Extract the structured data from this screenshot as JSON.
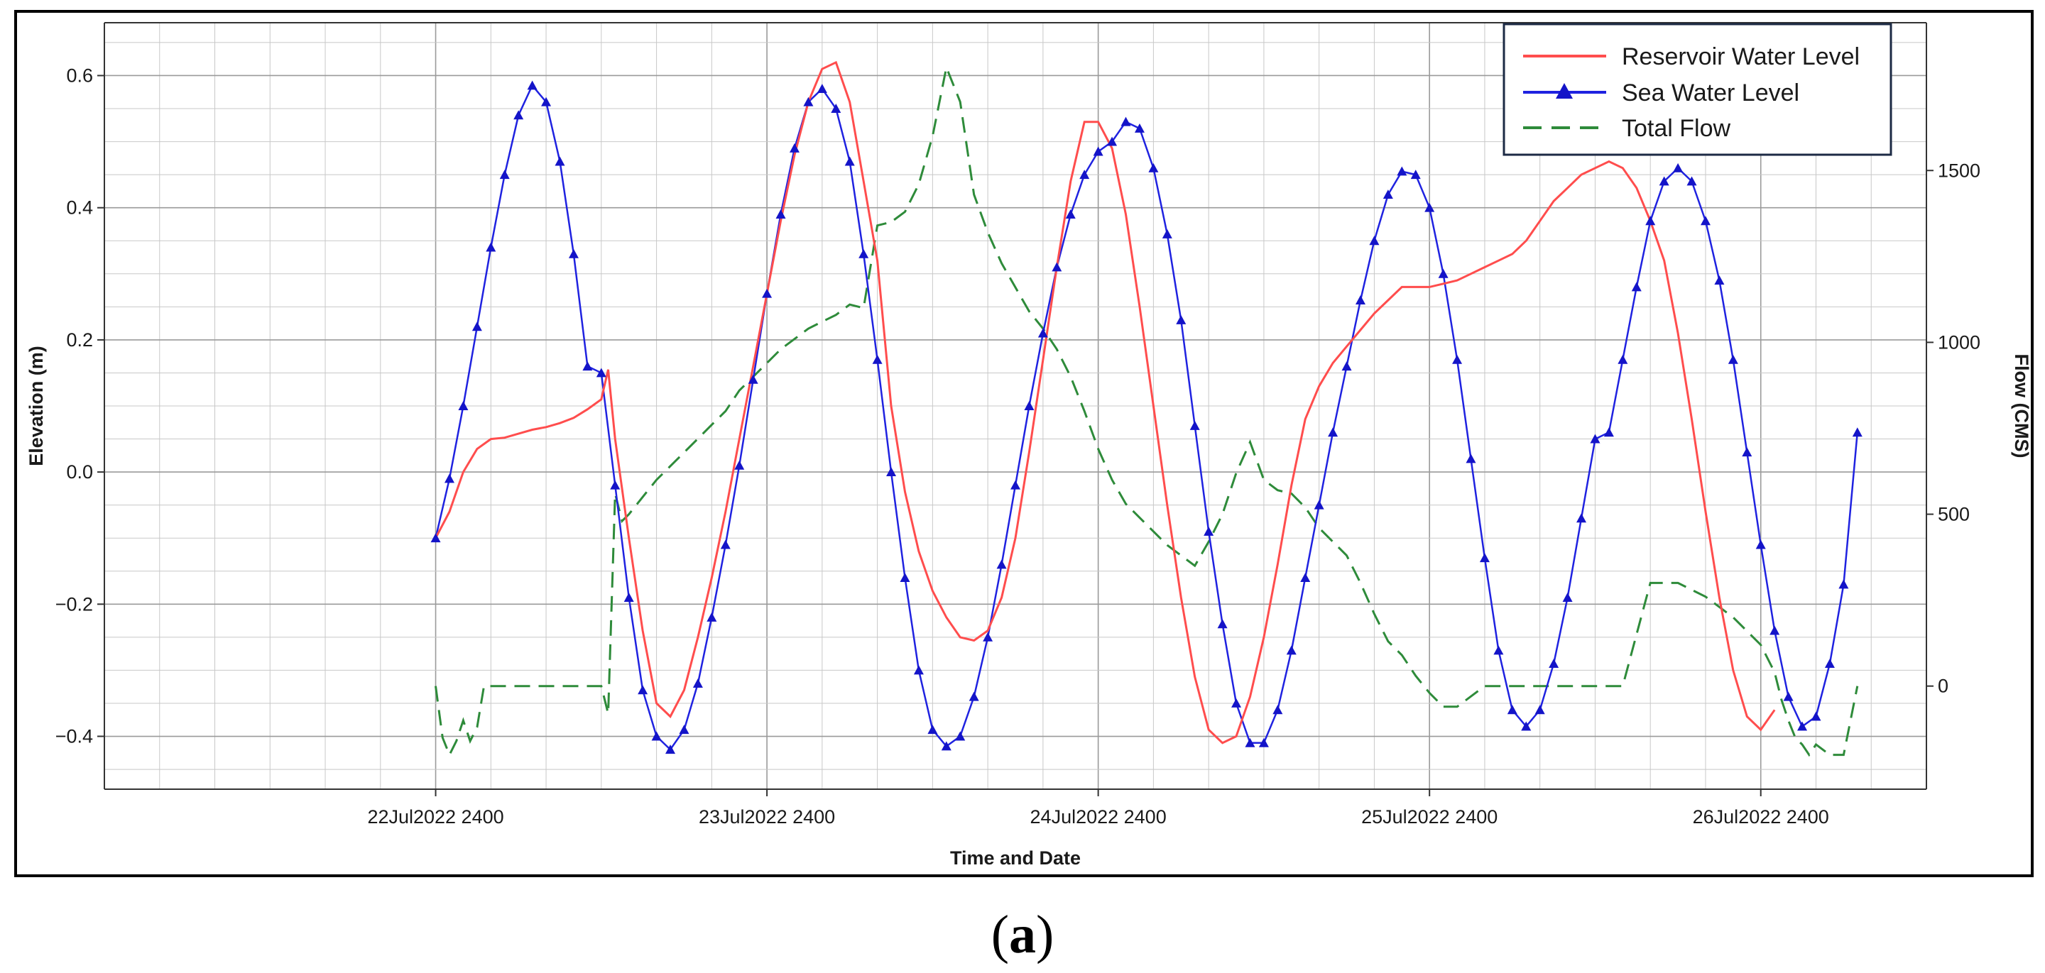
{
  "figure": {
    "panel_label": "(a)",
    "panel_letter": "a"
  },
  "colors": {
    "reservoir": "#ff4d4d",
    "sea": "#1f22e0",
    "sea_marker": "#1414c8",
    "flow": "#2e8b3a",
    "grid": "#c8c8c8",
    "axis": "#333333"
  },
  "chart_data": {
    "type": "line",
    "title": "",
    "xlabel": "Time and Date",
    "ylabel": "Elevation (m)",
    "y2label": "Flow (CMS)",
    "x_unit": "hours from 22Jul2022 2400",
    "xlim": [
      -24,
      108
    ],
    "ylim": [
      -0.48,
      0.68
    ],
    "y2lim": [
      -300,
      1930
    ],
    "x_ticks": [
      {
        "label": "22Jul2022 2400",
        "value": 0
      },
      {
        "label": "23Jul2022 2400",
        "value": 24
      },
      {
        "label": "24Jul2022 2400",
        "value": 48
      },
      {
        "label": "25Jul2022 2400",
        "value": 72
      },
      {
        "label": "26Jul2022 2400",
        "value": 96
      }
    ],
    "y_ticks": [
      "-0.4",
      "-0.2",
      "0.0",
      "0.2",
      "0.4",
      "0.6"
    ],
    "y2_ticks": [
      "0",
      "500",
      "1000",
      "1500"
    ],
    "grid": true,
    "legend_position": "top-right",
    "series": [
      {
        "name": "Reservoir Water Level",
        "axis": "left",
        "style": "solid",
        "x": [
          0,
          1,
          2,
          3,
          4,
          5,
          6,
          7,
          8,
          9,
          10,
          11,
          12,
          12.5,
          13,
          14,
          15,
          16,
          17,
          18,
          19,
          20,
          21,
          22,
          23,
          24,
          25,
          26,
          27,
          28,
          29,
          30,
          31,
          32,
          33,
          34,
          35,
          36,
          37,
          38,
          39,
          40,
          41,
          42,
          43,
          44,
          45,
          46,
          47,
          48,
          49,
          50,
          51,
          52,
          53,
          54,
          55,
          56,
          57,
          58,
          59,
          60,
          61,
          62,
          63,
          64,
          65,
          66,
          67,
          68,
          69,
          70,
          71,
          72,
          73,
          74,
          75,
          76,
          77,
          78,
          79,
          80,
          81,
          82,
          83,
          84,
          85,
          86,
          87,
          88,
          89,
          90,
          91,
          92,
          93,
          94,
          95,
          96,
          97
        ],
        "y": [
          -0.1,
          -0.06,
          0.0,
          0.035,
          0.05,
          0.052,
          0.058,
          0.064,
          0.068,
          0.074,
          0.082,
          0.095,
          0.11,
          0.155,
          0.05,
          -0.1,
          -0.24,
          -0.35,
          -0.37,
          -0.33,
          -0.25,
          -0.16,
          -0.06,
          0.05,
          0.16,
          0.27,
          0.38,
          0.48,
          0.56,
          0.61,
          0.62,
          0.56,
          0.44,
          0.32,
          0.1,
          -0.03,
          -0.12,
          -0.18,
          -0.22,
          -0.25,
          -0.255,
          -0.24,
          -0.19,
          -0.1,
          0.03,
          0.17,
          0.31,
          0.44,
          0.53,
          0.53,
          0.49,
          0.39,
          0.25,
          0.1,
          -0.05,
          -0.19,
          -0.31,
          -0.39,
          -0.41,
          -0.4,
          -0.34,
          -0.25,
          -0.14,
          -0.02,
          0.08,
          0.13,
          0.165,
          0.19,
          0.215,
          0.24,
          0.26,
          0.28,
          0.28,
          0.28,
          0.285,
          0.29,
          0.3,
          0.31,
          0.32,
          0.33,
          0.35,
          0.38,
          0.41,
          0.43,
          0.45,
          0.46,
          0.47,
          0.46,
          0.43,
          0.38,
          0.32,
          0.21,
          0.08,
          -0.06,
          -0.19,
          -0.3,
          -0.37,
          -0.39,
          -0.36
        ]
      },
      {
        "name": "Sea Water Level",
        "axis": "left",
        "style": "solid-triangles",
        "x": [
          0,
          1,
          2,
          3,
          4,
          5,
          6,
          7,
          8,
          9,
          10,
          11,
          12,
          13,
          14,
          15,
          16,
          17,
          18,
          19,
          20,
          21,
          22,
          23,
          24,
          25,
          26,
          27,
          28,
          29,
          30,
          31,
          32,
          33,
          34,
          35,
          36,
          37,
          38,
          39,
          40,
          41,
          42,
          43,
          44,
          45,
          46,
          47,
          48,
          49,
          50,
          51,
          52,
          53,
          54,
          55,
          56,
          57,
          58,
          59,
          60,
          61,
          62,
          63,
          64,
          65,
          66,
          67,
          68,
          69,
          70,
          71,
          72,
          73,
          74,
          75,
          76,
          77,
          78,
          79,
          80,
          81,
          82,
          83,
          84,
          85,
          86,
          87,
          88,
          89,
          90,
          91,
          92,
          93,
          94,
          95,
          96,
          97,
          98,
          99,
          100,
          101,
          102,
          103
        ],
        "y": [
          -0.1,
          -0.01,
          0.1,
          0.22,
          0.34,
          0.45,
          0.54,
          0.585,
          0.56,
          0.47,
          0.33,
          0.16,
          0.15,
          -0.02,
          -0.19,
          -0.33,
          -0.4,
          -0.42,
          -0.39,
          -0.32,
          -0.22,
          -0.11,
          0.01,
          0.14,
          0.27,
          0.39,
          0.49,
          0.56,
          0.58,
          0.55,
          0.47,
          0.33,
          0.17,
          0.0,
          -0.16,
          -0.3,
          -0.39,
          -0.415,
          -0.4,
          -0.34,
          -0.25,
          -0.14,
          -0.02,
          0.1,
          0.21,
          0.31,
          0.39,
          0.45,
          0.485,
          0.5,
          0.53,
          0.52,
          0.46,
          0.36,
          0.23,
          0.07,
          -0.09,
          -0.23,
          -0.35,
          -0.41,
          -0.41,
          -0.36,
          -0.27,
          -0.16,
          -0.05,
          0.06,
          0.16,
          0.26,
          0.35,
          0.42,
          0.455,
          0.45,
          0.4,
          0.3,
          0.17,
          0.02,
          -0.13,
          -0.27,
          -0.36,
          -0.385,
          -0.36,
          -0.29,
          -0.19,
          -0.07,
          0.05,
          0.06,
          0.17,
          0.28,
          0.38,
          0.44,
          0.46,
          0.44,
          0.38,
          0.29,
          0.17,
          0.03,
          -0.11,
          -0.24,
          -0.34,
          -0.385,
          -0.37,
          -0.29,
          -0.17,
          0.06
        ]
      },
      {
        "name": "Total Flow",
        "axis": "right",
        "style": "dashed",
        "x": [
          0,
          0.5,
          1,
          1.5,
          2,
          2.5,
          3,
          3.5,
          4,
          6,
          8,
          10,
          12,
          12.5,
          13,
          13.5,
          14,
          15,
          16,
          17,
          18,
          19,
          20,
          21,
          22,
          23,
          24,
          25,
          26,
          27,
          28,
          29,
          30,
          31,
          32,
          33,
          34,
          35,
          36,
          37,
          38,
          39,
          40,
          41,
          42,
          43,
          44,
          45,
          46,
          47,
          48,
          49,
          50,
          51,
          52,
          53,
          54,
          55,
          56,
          57,
          58,
          59,
          60,
          61,
          62,
          63,
          64,
          65,
          66,
          67,
          68,
          69,
          70,
          71,
          72,
          73,
          74,
          76,
          78,
          80,
          82,
          84,
          86,
          88,
          90,
          92,
          94,
          96,
          97,
          97.5,
          98,
          98.5,
          99,
          99.5,
          100,
          101,
          102,
          103
        ],
        "y": [
          0,
          -150,
          -200,
          -160,
          -100,
          -160,
          -120,
          0,
          0,
          0,
          0,
          0,
          0,
          -80,
          560,
          480,
          500,
          550,
          600,
          640,
          680,
          720,
          760,
          800,
          860,
          900,
          940,
          980,
          1010,
          1040,
          1060,
          1080,
          1110,
          1100,
          1340,
          1350,
          1380,
          1460,
          1600,
          1800,
          1700,
          1430,
          1320,
          1230,
          1160,
          1090,
          1040,
          980,
          900,
          800,
          690,
          600,
          530,
          490,
          450,
          410,
          380,
          350,
          420,
          500,
          620,
          710,
          600,
          570,
          560,
          520,
          460,
          420,
          380,
          300,
          210,
          130,
          90,
          30,
          -20,
          -60,
          -60,
          0,
          0,
          0,
          0,
          0,
          0,
          300,
          300,
          260,
          200,
          120,
          40,
          -40,
          -100,
          -150,
          -170,
          -200,
          -170,
          -200,
          -200,
          0
        ]
      }
    ]
  }
}
